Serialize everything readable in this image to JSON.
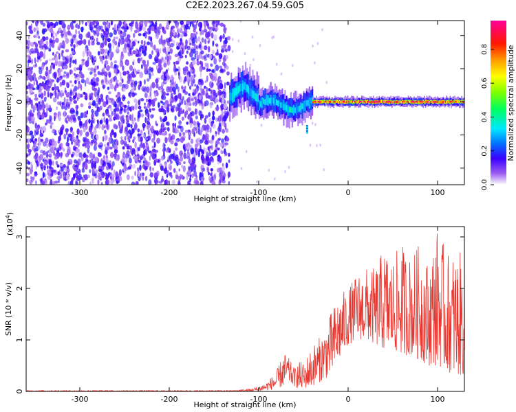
{
  "title": "C2E2.2023.267.04.59.G05",
  "chart_data": [
    {
      "type": "heatmap",
      "xlabel": "Height of straight line (km)",
      "ylabel": "Frequency (Hz)",
      "xlim": [
        -360,
        130
      ],
      "ylim": [
        -50,
        49
      ],
      "xticks": [
        -300,
        -200,
        -100,
        0,
        100
      ],
      "yticks": [
        -40,
        -20,
        0,
        20,
        40
      ],
      "colorbar": {
        "label": "Normalized spectral amplitude",
        "ticks": [
          "0.0",
          "0.2",
          "0.4",
          "0.6",
          "0.8"
        ],
        "tick_values": [
          0.0,
          0.2,
          0.4,
          0.6,
          0.8
        ],
        "range": [
          0,
          0.97
        ]
      },
      "regions": [
        {
          "x_range": [
            -360,
            -133
          ],
          "description_level": 0.1,
          "freq_range": [
            -50,
            49
          ],
          "kind": "noise"
        },
        {
          "x_range": [
            -133,
            -100
          ],
          "level": 0.35,
          "freq_center": 6,
          "freq_halfwidth": 8
        },
        {
          "x_range": [
            -100,
            -40
          ],
          "level": 0.35,
          "freq_center": -2,
          "freq_halfwidth": 6
        },
        {
          "x_range": [
            -40,
            130
          ],
          "level": 0.85,
          "freq_center": 0,
          "freq_halfwidth": 2
        }
      ]
    },
    {
      "type": "line",
      "xlabel": "Height of straight line (km)",
      "ylabel": "SNR (10 * v/v)",
      "y_multiplier": "(x10",
      "y_multiplier_exp": "4",
      "y_multiplier_close": ")",
      "xlim": [
        -360,
        130
      ],
      "ylim": [
        0,
        3.2
      ],
      "xticks": [
        -300,
        -200,
        -100,
        0,
        100
      ],
      "yticks": [
        0,
        1,
        2,
        3
      ],
      "series": [
        {
          "color": "#e8352e",
          "envelope": {
            "x": [
              -360,
              -130,
              -110,
              -100,
              -90,
              -80,
              -72,
              -68,
              -60,
              -55,
              -50,
              -40,
              -30,
              -20,
              -10,
              0,
              10,
              20,
              30,
              40,
              50,
              60,
              70,
              80,
              90,
              100,
              110,
              120,
              130
            ],
            "min": [
              0,
              0,
              0,
              0.01,
              0.02,
              0.05,
              0.1,
              0.2,
              0.1,
              0.05,
              0.05,
              0.1,
              0.2,
              0.3,
              0.6,
              0.9,
              1.0,
              1.0,
              0.9,
              0.8,
              0.8,
              0.7,
              0.7,
              0.6,
              0.5,
              0.5,
              0.4,
              0.3,
              0.3
            ],
            "max": [
              0.02,
              0.02,
              0.05,
              0.1,
              0.2,
              0.4,
              0.75,
              0.7,
              0.45,
              0.6,
              0.55,
              0.9,
              1.1,
              1.5,
              1.9,
              2.0,
              2.3,
              2.4,
              2.4,
              2.8,
              2.6,
              2.9,
              2.6,
              2.9,
              2.5,
              3.2,
              2.7,
              2.7,
              2.7
            ]
          }
        }
      ]
    }
  ]
}
